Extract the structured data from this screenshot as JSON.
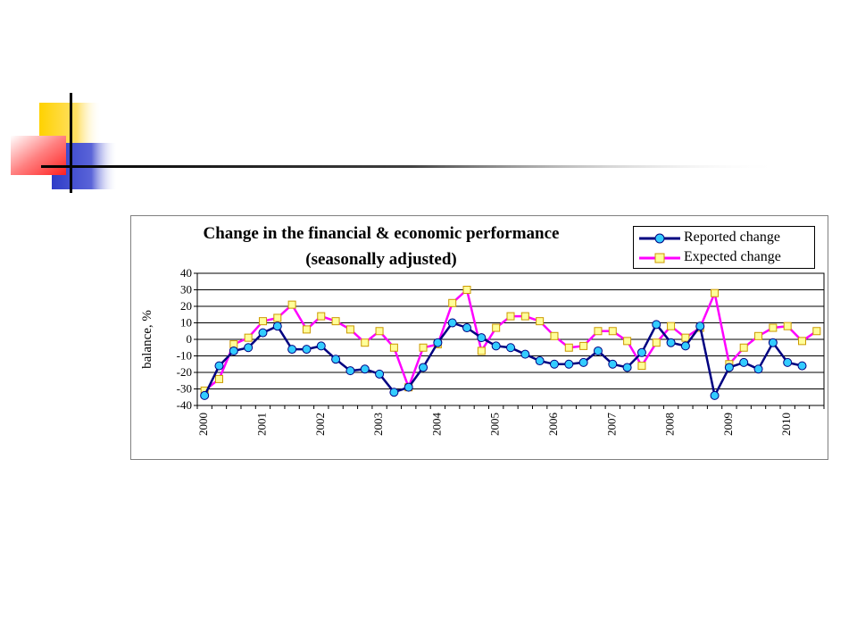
{
  "chart_data": {
    "type": "line",
    "title": "Change in the financial & economic performance",
    "subtitle": "(seasonally adjusted)",
    "ylabel": "balance, %",
    "xlabel": "",
    "ylim": [
      -40,
      40
    ],
    "y_ticks": [
      "40",
      "30",
      "20",
      "10",
      "0",
      "-10",
      "-20",
      "-30",
      "-40"
    ],
    "x_tick_labels": [
      "2000",
      "2001",
      "2002",
      "2003",
      "2004",
      "2005",
      "2006",
      "2007",
      "2008",
      "2009",
      "2010"
    ],
    "grid": "horizontal",
    "legend_position": "top-right",
    "series": [
      {
        "name": "Reported change",
        "color": "#000080",
        "marker_color": "#33ccff",
        "marker": "circle",
        "values": [
          -34,
          -16,
          -7,
          -5,
          4,
          8,
          -6,
          -6,
          -4,
          -12,
          -19,
          -18,
          -21,
          -32,
          -29,
          -17,
          -2,
          10,
          7,
          1,
          -4,
          -5,
          -9,
          -13,
          -15,
          -15,
          -14,
          -7,
          -15,
          -17,
          -8,
          9,
          -2,
          -4,
          8,
          -34,
          -17,
          -14,
          -18,
          -2,
          -14,
          -16
        ]
      },
      {
        "name": "Expected change",
        "color": "#ff00ff",
        "marker_color": "#ffff99",
        "marker": "square",
        "values": [
          -31,
          -24,
          -3,
          1,
          11,
          13,
          21,
          6,
          14,
          11,
          6,
          -2,
          5,
          -5,
          -29,
          -5,
          -3,
          22,
          30,
          -7,
          7,
          14,
          14,
          11,
          2,
          -5,
          -4,
          5,
          5,
          -1,
          -16,
          -2,
          8,
          1,
          7,
          28,
          -15,
          -5,
          2,
          7,
          8,
          -1,
          5
        ]
      }
    ]
  },
  "slide": {
    "deco_colors": {
      "yellow": "#ffd200",
      "red": "#ff4040",
      "blue": "#2e3cc8",
      "line": "#000000"
    }
  }
}
